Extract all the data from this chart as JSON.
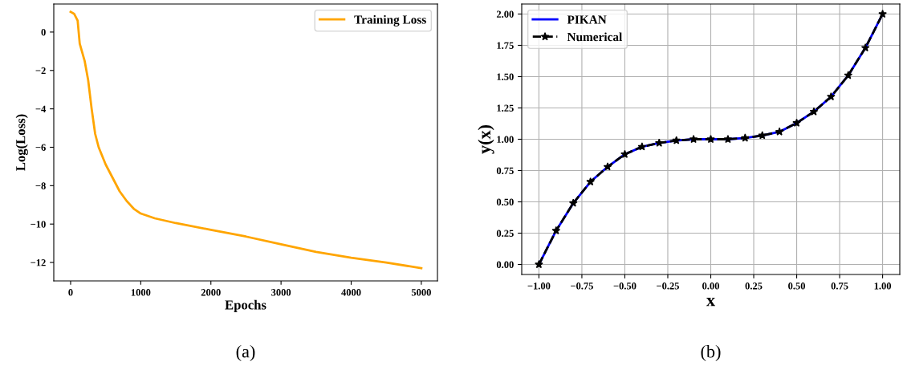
{
  "chart_data": [
    {
      "type": "line",
      "xlabel": "Epochs",
      "ylabel": "Log(Loss)",
      "xlim": [
        -240,
        5230
      ],
      "ylim": [
        -12.96,
        1.46
      ],
      "xticks": [
        0,
        1000,
        2000,
        3000,
        4000,
        5000
      ],
      "yticks": [
        0,
        {
          "value": -2,
          "label": "−2"
        },
        {
          "value": -4,
          "label": "−4"
        },
        {
          "value": -6,
          "label": "−6"
        },
        {
          "value": -8,
          "label": "−8"
        },
        {
          "value": -10,
          "label": "−10"
        },
        {
          "value": -12,
          "label": "−12"
        }
      ],
      "grid": false,
      "legend": "top right",
      "annotations": [
        "(a)"
      ],
      "series": [
        {
          "name": "Training Loss",
          "color": "#ffa500",
          "x": [
            0,
            50,
            100,
            130,
            200,
            250,
            300,
            350,
            400,
            500,
            600,
            700,
            800,
            900,
            1000,
            1200,
            1500,
            2000,
            2500,
            3000,
            3500,
            4000,
            4500,
            5000
          ],
          "values": [
            1.05,
            0.95,
            0.6,
            -0.6,
            -1.5,
            -2.5,
            -4.0,
            -5.3,
            -6.0,
            -6.9,
            -7.6,
            -8.3,
            -8.8,
            -9.2,
            -9.45,
            -9.7,
            -9.95,
            -10.3,
            -10.65,
            -11.05,
            -11.45,
            -11.75,
            -12.0,
            -12.3
          ]
        }
      ]
    },
    {
      "type": "line",
      "xlabel": "x",
      "ylabel": "y(x)",
      "xlim": [
        -1.1,
        1.1
      ],
      "ylim": [
        -0.08,
        2.08
      ],
      "xticks": [
        {
          "value": -1,
          "label": "−1.00"
        },
        {
          "value": -0.75,
          "label": "−0.75"
        },
        {
          "value": -0.5,
          "label": "−0.50"
        },
        {
          "value": -0.25,
          "label": "−0.25"
        },
        {
          "value": 0,
          "label": "0.00"
        },
        {
          "value": 0.25,
          "label": "0.25"
        },
        {
          "value": 0.5,
          "label": "0.50"
        },
        {
          "value": 0.75,
          "label": "0.75"
        },
        {
          "value": 1,
          "label": "1.00"
        }
      ],
      "yticks": [
        {
          "value": 0,
          "label": "0.00"
        },
        {
          "value": 0.25,
          "label": "0.25"
        },
        {
          "value": 0.5,
          "label": "0.50"
        },
        {
          "value": 0.75,
          "label": "0.75"
        },
        {
          "value": 1,
          "label": "1.00"
        },
        {
          "value": 1.25,
          "label": "1.25"
        },
        {
          "value": 1.5,
          "label": "1.50"
        },
        {
          "value": 1.75,
          "label": "1.75"
        },
        {
          "value": 2,
          "label": "2.00"
        }
      ],
      "grid": true,
      "legend": "top left",
      "annotations": [
        "(b)"
      ],
      "series": [
        {
          "name": "PIKAN",
          "color": "#0000ff",
          "line_style": "solid",
          "marker": "none",
          "x": [
            -1,
            -0.9,
            -0.8,
            -0.7,
            -0.6,
            -0.5,
            -0.4,
            -0.3,
            -0.2,
            -0.1,
            0,
            0.1,
            0.2,
            0.3,
            0.4,
            0.5,
            0.6,
            0.7,
            0.8,
            0.9,
            1
          ],
          "values": [
            0,
            0.27,
            0.49,
            0.66,
            0.78,
            0.88,
            0.94,
            0.97,
            0.99,
            1.0,
            1.0,
            1.0,
            1.01,
            1.03,
            1.06,
            1.13,
            1.22,
            1.34,
            1.51,
            1.73,
            2.0
          ]
        },
        {
          "name": "Numerical",
          "color": "#000000",
          "line_style": "dashed",
          "marker": "star",
          "x": [
            -1,
            -0.9,
            -0.8,
            -0.7,
            -0.6,
            -0.5,
            -0.4,
            -0.3,
            -0.2,
            -0.1,
            0,
            0.1,
            0.2,
            0.3,
            0.4,
            0.5,
            0.6,
            0.7,
            0.8,
            0.9,
            1
          ],
          "values": [
            0,
            0.27,
            0.49,
            0.66,
            0.78,
            0.88,
            0.94,
            0.97,
            0.99,
            1.0,
            1.0,
            1.0,
            1.01,
            1.03,
            1.06,
            1.13,
            1.22,
            1.34,
            1.51,
            1.73,
            2.0
          ]
        }
      ]
    }
  ]
}
